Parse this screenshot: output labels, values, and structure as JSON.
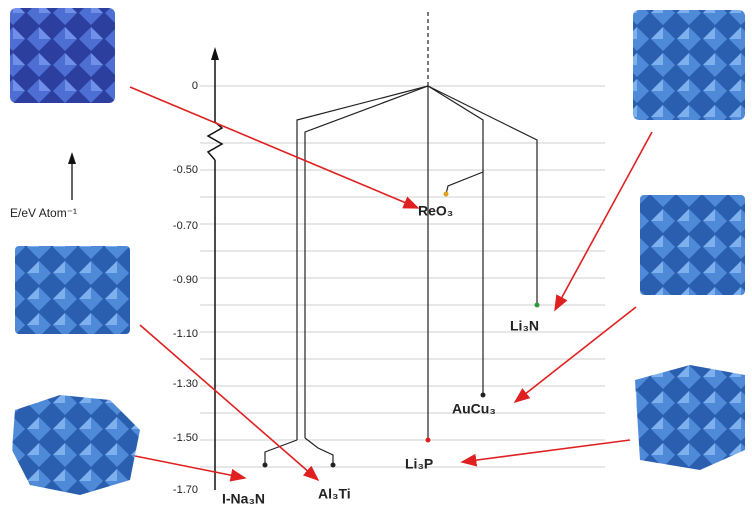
{
  "axis": {
    "label": "E/eV Atom⁻¹",
    "ticks": [
      "0",
      "-0.50",
      "-0.70",
      "-0.90",
      "-1.10",
      "-1.30",
      "-1.50",
      "-1.70"
    ]
  },
  "nodes": [
    {
      "label": "ReO₃"
    },
    {
      "label": "Li₃N"
    },
    {
      "label": "AuCu₃"
    },
    {
      "label": "Li₃P"
    },
    {
      "label": "I-Na₃N"
    },
    {
      "label": "Al₃Ti"
    }
  ]
}
